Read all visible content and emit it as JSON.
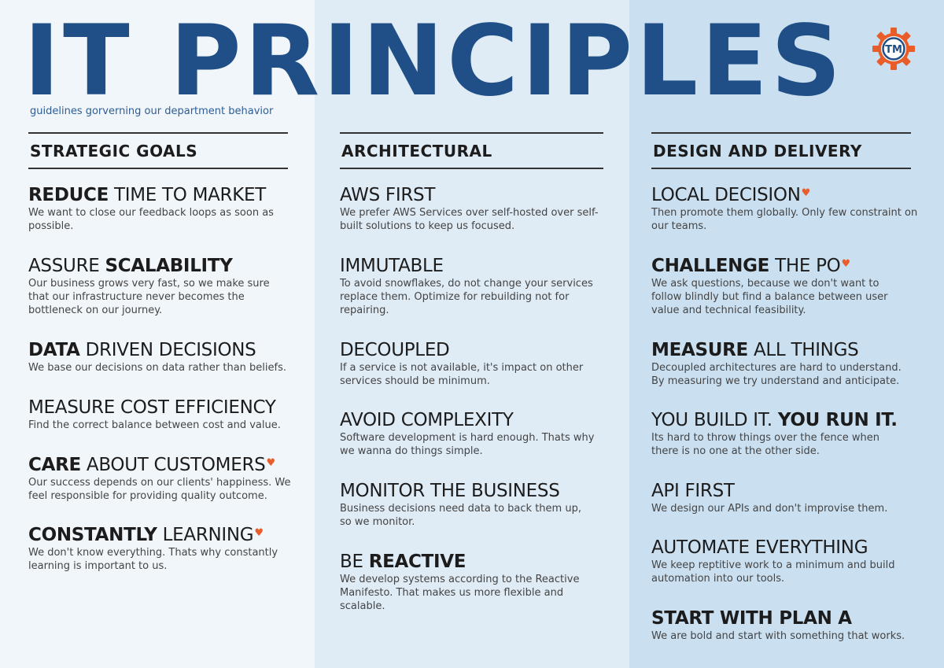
{
  "header": {
    "title": "IT PRINCIPLES",
    "subtitle": "guidelines gorverning our department behavior",
    "logo_text": "TM",
    "logo_color": "#e85d2a",
    "title_color": "#1f4f86"
  },
  "columns": [
    {
      "heading": "STRATEGIC GOALS",
      "items": [
        {
          "bold": "REDUCE",
          "normal": " TIME TO MARKET",
          "desc": "We want to close our feedback loops as soon as possible."
        },
        {
          "normal": "ASSURE ",
          "bold": "SCALABILITY",
          "desc": "Our business grows very fast, so we make sure that our infrastructure never becomes the bottleneck on our journey."
        },
        {
          "bold": "DATA",
          "normal": " DRIVEN DECISIONS",
          "desc": "We base our decisions on data rather than beliefs."
        },
        {
          "normal": "MEASURE COST EFFICIENCY",
          "desc": "Find the correct balance between cost and value."
        },
        {
          "bold": "CARE",
          "normal": " ABOUT CUSTOMERS",
          "heart": "heart-icon",
          "desc": "Our success depends on our clients' happiness. We feel responsible for providing quality outcome."
        },
        {
          "bold": "CONSTANTLY",
          "normal": " LEARNING",
          "heart": "heart-icon",
          "desc": "We don't know everything. Thats why constantly learning is important to us."
        }
      ]
    },
    {
      "heading": "ARCHITECTURAL",
      "items": [
        {
          "normal": "AWS FIRST",
          "desc": "We prefer AWS Services over self-hosted over self-built solutions to keep us focused."
        },
        {
          "normal": "IMMUTABLE",
          "desc": "To avoid snowflakes, do not change your services replace them. Optimize for rebuilding not for repairing."
        },
        {
          "normal": "DECOUPLED",
          "desc": "If a service is not available, it's impact on other services should be minimum."
        },
        {
          "normal": "AVOID COMPLEXITY",
          "desc": "Software development is hard enough. Thats why we wanna do things simple."
        },
        {
          "normal": "MONITOR THE BUSINESS",
          "desc": "Business decisions need data to back them up, so we monitor."
        },
        {
          "normal": "BE ",
          "bold": "REACTIVE",
          "desc": "We develop systems according to the Reactive Manifesto. That makes us more flexible and scalable."
        }
      ]
    },
    {
      "heading": "DESIGN AND DELIVERY",
      "items": [
        {
          "normal": "LOCAL DECISION",
          "heart": "heart-icon",
          "desc": "Then promote them globally. Only few constraint on our teams."
        },
        {
          "bold": "CHALLENGE",
          "normal": " THE PO",
          "heart": "heart-icon",
          "desc": "We ask questions, because we don't want to follow blindly but find a balance between user value and technical feasibility."
        },
        {
          "bold": "MEASURE",
          "normal": " ALL THINGS",
          "desc": "Decoupled architectures are hard to understand. By measuring we try understand and anticipate."
        },
        {
          "normal": "YOU BUILD IT. ",
          "bold": "YOU RUN IT.",
          "desc": "Its hard to throw things over the fence when there is no one at the other side."
        },
        {
          "normal": "API FIRST",
          "desc": "We design our APIs and don't improvise them."
        },
        {
          "normal": "AUTOMATE EVERYTHING",
          "desc": "We keep reptitive work to a minimum and build automation into our tools."
        },
        {
          "bold": "START WITH PLAN A",
          "desc": "We are bold and start with something that works."
        }
      ]
    }
  ]
}
